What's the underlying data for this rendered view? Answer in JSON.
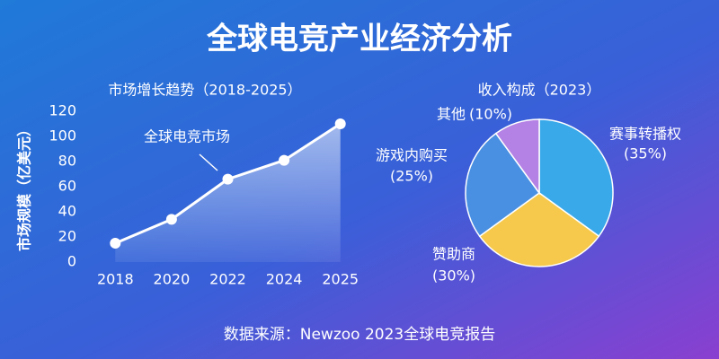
{
  "title": "全球电竞产业经济分析",
  "source": "数据来源：Newzoo 2023全球电竞报告",
  "chart_data": [
    {
      "type": "line",
      "title": "市场增长趋势（2018-2025）",
      "y_label": "市场规模（亿美元）",
      "categories": [
        "2018",
        "2020",
        "2022",
        "2024",
        "2025"
      ],
      "series": [
        {
          "name": "全球电竞市场",
          "color": "#ffffff",
          "values": [
            15,
            34,
            66,
            81,
            110
          ]
        }
      ],
      "ylim": [
        0,
        120
      ],
      "yticks": [
        0,
        20,
        40,
        60,
        80,
        100,
        120
      ],
      "grid": false
    },
    {
      "type": "pie",
      "title": "收入构成（2023）",
      "categories": [
        "赛事转播权",
        "赞助商",
        "游戏内购买",
        "其他"
      ],
      "values": [
        35,
        30,
        25,
        10
      ],
      "value_labels": [
        "(35%)",
        "(30%)",
        "(25%)",
        "(10%)"
      ],
      "colors": [
        "#3aa9ea",
        "#f6c94c",
        "#4a90e2",
        "#b482e4"
      ]
    }
  ]
}
